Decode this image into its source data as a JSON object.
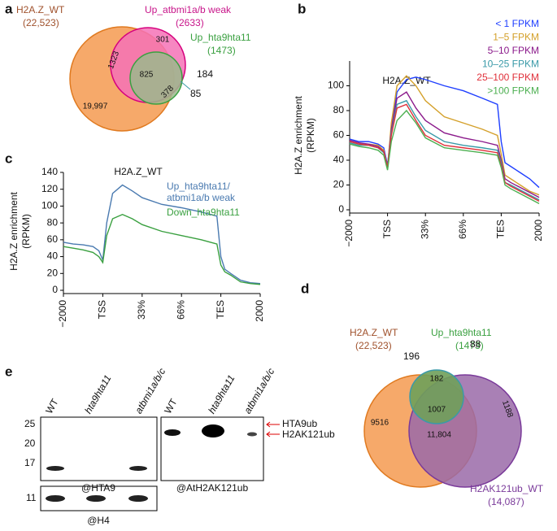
{
  "panels": [
    "a",
    "b",
    "c",
    "d",
    "e"
  ],
  "venn_a": {
    "wt": "H2A.Z_WT",
    "wt_n": "(22,523)",
    "up_bmi": "Up_atbmi1a/b weak",
    "up_bmi_n": "(2633)",
    "up_hta": "Up_hta9hta11",
    "up_hta_n": "(1473)",
    "counts": [
      "301",
      "1323",
      "825",
      "184",
      "378",
      "85",
      "19,997"
    ]
  },
  "chart_data": [
    {
      "type": "line",
      "title": "H2A.Z_WT",
      "ylabel": [
        "H2A.Z enrichment",
        "(RPKM)"
      ],
      "x": [
        0,
        0.25,
        0.5,
        0.75,
        0.9,
        1,
        1.1,
        1.25,
        1.5,
        1.75,
        2,
        2.5,
        3,
        3.5,
        3.9,
        4,
        4.1,
        4.25,
        4.5,
        4.75,
        5
      ],
      "xlim": [
        0,
        5
      ],
      "xticks": [
        {
          "value": 0,
          "label": "−2000"
        },
        {
          "value": 1,
          "label": "TSS"
        },
        {
          "value": 2,
          "label": "33%"
        },
        {
          "value": 3,
          "label": "66%"
        },
        {
          "value": 4,
          "label": "TES"
        },
        {
          "value": 5,
          "label": "2000"
        }
      ],
      "ylim": [
        0,
        120
      ],
      "yticks": [
        0,
        20,
        40,
        60,
        80,
        100
      ],
      "series": [
        {
          "name": "< 1 FPKM",
          "color": "#1f3fff",
          "values": [
            57,
            55,
            55,
            53,
            50,
            36,
            65,
            95,
            105,
            107,
            105,
            100,
            96,
            90,
            85,
            55,
            38,
            35,
            30,
            25,
            18
          ]
        },
        {
          "name": "1–5 FPKM",
          "color": "#d4a02a",
          "values": [
            55,
            53,
            53,
            52,
            48,
            34,
            70,
            100,
            108,
            100,
            88,
            75,
            70,
            65,
            60,
            45,
            28,
            25,
            20,
            15,
            12
          ]
        },
        {
          "name": "5–10 FPKM",
          "color": "#8b1a8b",
          "values": [
            56,
            54,
            53,
            51,
            47,
            33,
            65,
            90,
            95,
            82,
            72,
            62,
            58,
            55,
            52,
            40,
            25,
            22,
            18,
            14,
            10
          ]
        },
        {
          "name": "10–25 FPKM",
          "color": "#3a9aa8",
          "values": [
            54,
            52,
            52,
            50,
            46,
            33,
            62,
            85,
            88,
            75,
            64,
            55,
            52,
            50,
            48,
            38,
            22,
            20,
            16,
            12,
            8
          ]
        },
        {
          "name": "25–100 FPKM",
          "color": "#e0303a",
          "values": [
            55,
            53,
            52,
            50,
            47,
            34,
            60,
            82,
            85,
            72,
            60,
            52,
            50,
            48,
            46,
            36,
            22,
            19,
            15,
            11,
            7
          ]
        },
        {
          "name": ">100 FPKM",
          "color": "#4caf50",
          "values": [
            53,
            51,
            50,
            48,
            44,
            32,
            55,
            72,
            80,
            70,
            58,
            50,
            48,
            46,
            44,
            34,
            20,
            17,
            13,
            9,
            5
          ]
        }
      ]
    },
    {
      "type": "line",
      "title": "H2A.Z_WT",
      "ylabel": [
        "H2A.Z enrichment",
        "(RPKM)"
      ],
      "x": [
        0,
        0.25,
        0.5,
        0.75,
        0.9,
        1,
        1.1,
        1.25,
        1.5,
        1.75,
        2,
        2.5,
        3,
        3.5,
        3.9,
        4,
        4.1,
        4.25,
        4.5,
        4.75,
        5
      ],
      "xlim": [
        0,
        5
      ],
      "xticks": [
        {
          "value": 0,
          "label": "−2000"
        },
        {
          "value": 1,
          "label": "TSS"
        },
        {
          "value": 2,
          "label": "33%"
        },
        {
          "value": 3,
          "label": "66%"
        },
        {
          "value": 4,
          "label": "TES"
        },
        {
          "value": 5,
          "label": "2000"
        }
      ],
      "ylim": [
        0,
        140
      ],
      "yticks": [
        0,
        20,
        40,
        60,
        80,
        100,
        120,
        140
      ],
      "series": [
        {
          "name": "Up_hta9hta11/ atbmi1a/b weak",
          "color": "#4a7ab0",
          "values": [
            57,
            55,
            54,
            52,
            47,
            36,
            80,
            115,
            125,
            118,
            110,
            102,
            98,
            93,
            88,
            40,
            25,
            20,
            12,
            9,
            8
          ]
        },
        {
          "name": "Down_hta9hta11",
          "color": "#3aa040",
          "values": [
            52,
            50,
            48,
            45,
            40,
            33,
            65,
            85,
            90,
            85,
            78,
            70,
            65,
            60,
            55,
            30,
            22,
            18,
            10,
            8,
            7
          ]
        }
      ]
    }
  ],
  "venn_d": {
    "wt": "H2A.Z_WT",
    "wt_n": "(22,523)",
    "up_hta": "Up_hta9hta11",
    "up_hta_n": "(1473)",
    "k121": "H2AK121ub_WT",
    "k121_n": "(14,087)",
    "counts": [
      "196",
      "88",
      "182",
      "1007",
      "1188",
      "9516",
      "11,804"
    ]
  },
  "blot": {
    "lanes": [
      "WT",
      "hta9hta11",
      "atbmi1a/b/c",
      "WT",
      "hta9hta11",
      "atbmi1a/b/c"
    ],
    "markers": [
      25,
      20,
      17
    ],
    "h4_marker": 11,
    "antibodies": [
      "@HTA9",
      "@AtH2AK121ub",
      "@H4"
    ],
    "bands": [
      "HTA9ub",
      "H2AK121ub"
    ]
  }
}
